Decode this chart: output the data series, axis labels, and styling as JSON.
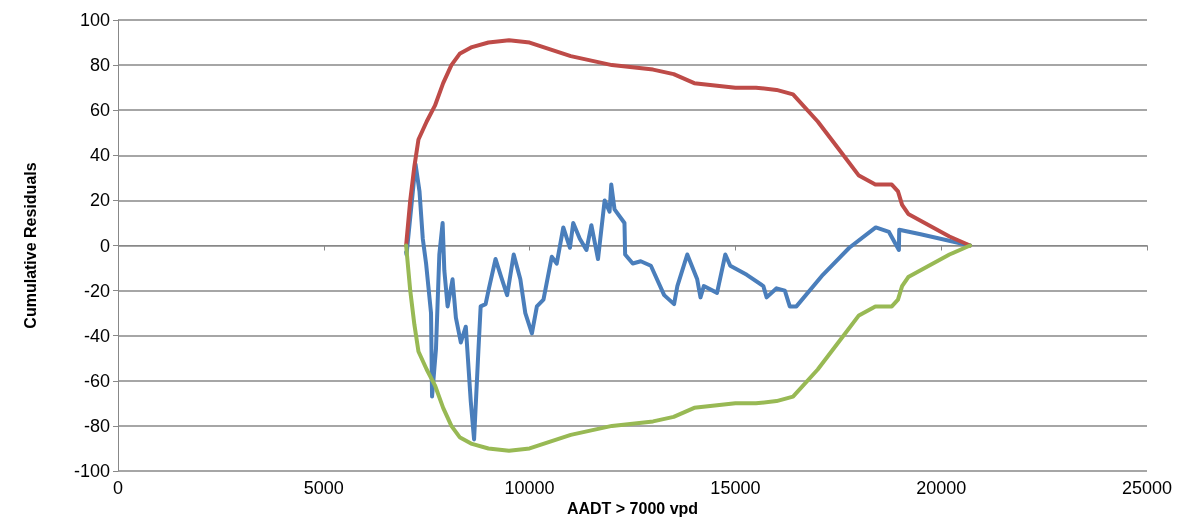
{
  "chart_data": {
    "type": "line",
    "xlabel": "AADT > 7000 vpd",
    "ylabel": "Cumulative Residuals",
    "xlim": [
      0,
      25000
    ],
    "xticks": [
      0,
      5000,
      10000,
      15000,
      20000,
      25000
    ],
    "ylim": [
      -100,
      100
    ],
    "yticks": [
      -100,
      -80,
      -60,
      -40,
      -20,
      0,
      20,
      40,
      60,
      80,
      100
    ],
    "grid": "y",
    "marker": "none",
    "line_style": "solid",
    "series": [
      {
        "color": "#4a7ebb",
        "x": [
          7000,
          7010,
          7229,
          7325,
          7405,
          7485,
          7605,
          7630,
          7725,
          7807,
          7887,
          7928,
          8008,
          8128,
          8209,
          8329,
          8450,
          8570,
          8651,
          8755,
          8811,
          8931,
          9012,
          9173,
          9293,
          9454,
          9614,
          9775,
          9896,
          10056,
          10177,
          10337,
          10538,
          10659,
          10819,
          10980,
          11060,
          11220,
          11381,
          11501,
          11662,
          11823,
          11943,
          11984,
          12064,
          12305,
          12321,
          12506,
          12700,
          12947,
          13269,
          13510,
          13590,
          13831,
          14072,
          14152,
          14233,
          14554,
          14755,
          14875,
          15277,
          15679,
          15759,
          16000,
          16201,
          16321,
          16482,
          17125,
          17767,
          18410,
          18731,
          18972,
          18980,
          19500,
          20700
        ],
        "values": [
          -3,
          -4,
          36,
          24,
          3,
          -8,
          -30,
          -67,
          -46,
          -4,
          10,
          -11,
          -27,
          -15,
          -32,
          -43,
          -36,
          -69,
          -86,
          -47,
          -27,
          -26,
          -19,
          -6,
          -13,
          -22,
          -4,
          -15,
          -30,
          -39,
          -27,
          -24,
          -5,
          -8,
          8,
          -1,
          10,
          3,
          -2,
          9,
          -6,
          20,
          15,
          27,
          16,
          10,
          -4,
          -8,
          -7,
          -9,
          -22,
          -26,
          -18,
          -4,
          -15,
          -23,
          -18,
          -21,
          -4,
          -9,
          -13,
          -18,
          -23,
          -19,
          -20,
          -27,
          -27,
          -13,
          -1,
          8,
          6,
          -2,
          7,
          5,
          0
        ]
      },
      {
        "color": "#be4b48",
        "x": [
          7000,
          7100,
          7200,
          7300,
          7500,
          7700,
          7900,
          8100,
          8300,
          8600,
          9000,
          9500,
          10000,
          10500,
          11000,
          11500,
          12000,
          12500,
          13000,
          13500,
          14000,
          14500,
          15000,
          15500,
          16000,
          16400,
          17000,
          17500,
          18000,
          18400,
          18800,
          18950,
          19050,
          19200,
          19700,
          20200,
          20700
        ],
        "values": [
          0,
          20,
          35,
          47,
          55,
          62,
          72,
          80,
          85,
          88,
          90,
          91,
          90,
          87,
          84,
          82,
          80,
          79,
          78,
          76,
          72,
          71,
          70,
          70,
          69,
          67,
          55,
          43,
          31,
          27,
          27,
          24,
          18,
          14,
          9,
          4,
          0
        ]
      },
      {
        "color": "#98b954",
        "x": [
          7000,
          7100,
          7200,
          7300,
          7500,
          7700,
          7900,
          8100,
          8300,
          8600,
          9000,
          9500,
          10000,
          10500,
          11000,
          11500,
          12000,
          12500,
          13000,
          13500,
          14000,
          14500,
          15000,
          15500,
          16000,
          16400,
          17000,
          17500,
          18000,
          18400,
          18800,
          18950,
          19050,
          19200,
          19700,
          20200,
          20700
        ],
        "values": [
          0,
          -20,
          -35,
          -47,
          -55,
          -62,
          -72,
          -80,
          -85,
          -88,
          -90,
          -91,
          -90,
          -87,
          -84,
          -82,
          -80,
          -79,
          -78,
          -76,
          -72,
          -71,
          -70,
          -70,
          -69,
          -67,
          -55,
          -43,
          -31,
          -27,
          -27,
          -24,
          -18,
          -14,
          -9,
          -4,
          0
        ]
      }
    ]
  }
}
